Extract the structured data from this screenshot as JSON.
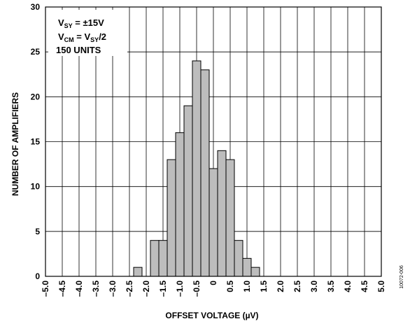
{
  "chart_data": {
    "type": "bar",
    "xlabel": "OFFSET VOLTAGE (µV)",
    "ylabel": "NUMBER OF AMPLIFIERS",
    "xlim": [
      -5.0,
      5.0
    ],
    "ylim": [
      0,
      30
    ],
    "bin_width": 0.25,
    "x_ticks": [
      "–5.0",
      "–4.5",
      "–4.0",
      "–3.5",
      "–3.0",
      "–2.5",
      "–2.0",
      "–1.5",
      "–1.0",
      "–0.5",
      "0",
      "0.5",
      "1.0",
      "1.5",
      "2.0",
      "2.5",
      "3.0",
      "3.5",
      "4.0",
      "4.5",
      "5.0"
    ],
    "y_ticks": [
      "0",
      "5",
      "10",
      "15",
      "20",
      "25",
      "30"
    ],
    "bins": [
      {
        "x": -2.25,
        "count": 1
      },
      {
        "x": -1.75,
        "count": 4
      },
      {
        "x": -1.5,
        "count": 4
      },
      {
        "x": -1.25,
        "count": 13
      },
      {
        "x": -1.0,
        "count": 16
      },
      {
        "x": -0.75,
        "count": 19
      },
      {
        "x": -0.5,
        "count": 24
      },
      {
        "x": -0.25,
        "count": 23
      },
      {
        "x": 0.0,
        "count": 12
      },
      {
        "x": 0.25,
        "count": 14
      },
      {
        "x": 0.5,
        "count": 13
      },
      {
        "x": 0.75,
        "count": 4
      },
      {
        "x": 1.0,
        "count": 2
      },
      {
        "x": 1.25,
        "count": 1
      }
    ],
    "grid": true,
    "bar_color": "#bdbdbd",
    "annotation": {
      "line1_prefix": "V",
      "line1_sub": "SY",
      "line1_rest": " = ±15V",
      "line2_prefix": "V",
      "line2_sub": "CM",
      "line2_mid": " = V",
      "line2_sub2": "SY",
      "line2_rest": "/2",
      "line3": "150 UNITS"
    },
    "figure_id": "10072-006"
  }
}
